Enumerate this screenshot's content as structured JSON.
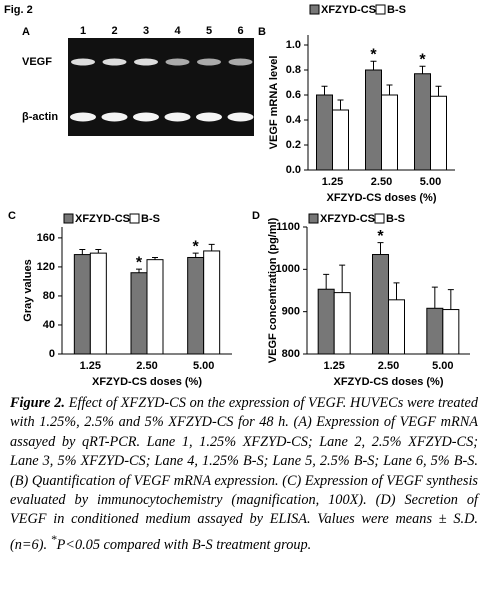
{
  "figure_label": "Fig. 2",
  "panel_a": {
    "panel": "A",
    "lanes": [
      "1",
      "2",
      "3",
      "4",
      "5",
      "6"
    ],
    "rows": [
      "VEGF",
      "β-actin"
    ]
  },
  "chart_data": [
    {
      "type": "bar",
      "panel": "B",
      "y_label": "VEGF mRNA level",
      "x_label": "XFZYD-CS doses (%)",
      "categories": [
        "1.25",
        "2.50",
        "5.00"
      ],
      "series": [
        {
          "name": "XFZYD-CS",
          "color": "#777777",
          "values": [
            0.6,
            0.8,
            0.77
          ],
          "errors": [
            0.07,
            0.07,
            0.06
          ]
        },
        {
          "name": "B-S",
          "color": "#ffffff",
          "values": [
            0.48,
            0.6,
            0.59
          ],
          "errors": [
            0.08,
            0.08,
            0.08
          ]
        }
      ],
      "annotations": [
        {
          "text": "*",
          "x": "2.50"
        },
        {
          "text": "*",
          "x": "5.00"
        }
      ],
      "ylim": [
        0,
        1.08
      ],
      "yticks": [
        {
          "value": 0,
          "label": "0.0"
        },
        {
          "value": 0.2,
          "label": "0.2"
        },
        {
          "value": 0.4,
          "label": "0.4"
        },
        {
          "value": 0.6,
          "label": "0.6"
        },
        {
          "value": 0.8,
          "label": "0.8"
        },
        {
          "value": 1,
          "label": "1.0"
        }
      ]
    },
    {
      "type": "bar",
      "panel": "C",
      "y_label": "Gray values",
      "categories": [
        "1.25",
        "2.50",
        "5.00"
      ],
      "series": [
        {
          "name": "XFZYD-CS",
          "color": "#777777",
          "values": [
            137,
            112,
            133
          ],
          "errors": [
            7,
            5,
            6
          ]
        },
        {
          "name": "B-S",
          "color": "#ffffff",
          "values": [
            139,
            130,
            142
          ],
          "errors": [
            5,
            3,
            9
          ]
        }
      ],
      "annotations": [
        {
          "text": "*",
          "x": "2.50"
        },
        {
          "text": "*",
          "x": "5.00"
        }
      ],
      "ylim": [
        0,
        175
      ],
      "yticks": [
        0,
        40,
        80,
        120,
        160
      ]
    },
    {
      "type": "bar",
      "panel": "D",
      "y_label": "VEGF concentration (pg/ml)",
      "x_label": "XFZYD-CS doses (%)",
      "categories": [
        "1.25",
        "2.50",
        "5.00"
      ],
      "series": [
        {
          "name": "XFZYD-CS",
          "color": "#777777",
          "values": [
            953,
            1035,
            908
          ],
          "errors": [
            35,
            28,
            50
          ]
        },
        {
          "name": "B-S",
          "color": "#ffffff",
          "values": [
            945,
            928,
            905
          ],
          "errors": [
            65,
            40,
            47
          ]
        }
      ],
      "annotations": [
        {
          "text": "*",
          "x": "2.50"
        }
      ],
      "ylim": [
        800,
        1100
      ],
      "yticks": [
        800,
        900,
        1000,
        1100
      ]
    }
  ],
  "shared_x_label": "XFZYD-CS doses (%)",
  "caption": {
    "figure": "Figure 2.",
    "text": "Effect of XFZYD-CS on the expression of VEGF. HUVECs were treated with 1.25%, 2.5% and 5% XFZYD-CS for 48 h. (A) Expression of VEGF mRNA assayed by qRT-PCR. Lane 1, 1.25% XFZYD-CS; Lane 2, 2.5% XFZYD-CS; Lane 3, 5% XFZYD-CS; Lane 4, 1.25% B-S; Lane 5, 2.5% B-S; Lane 6, 5% B-S. (B) Quantification of VEGF mRNA expression. (C) Expression of VEGF synthesis evaluated by immunocytochemistry (magnification, 100X). (D) Secretion of VEGF in conditioned medium assayed by ELISA. Values were means ± S.D. (n=6).",
    "sup": "*",
    "end": "P<0.05 compared with B-S treatment group."
  }
}
